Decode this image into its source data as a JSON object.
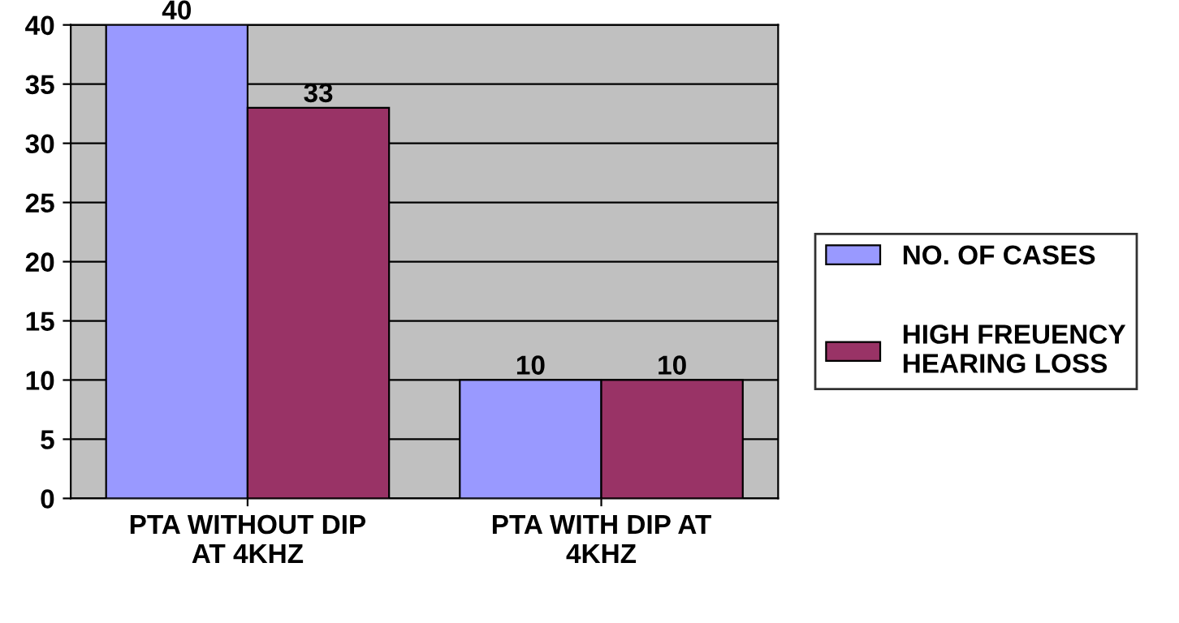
{
  "chart_data": {
    "type": "bar",
    "categories": [
      "PTA WITHOUT DIP\nAT 4KHZ",
      "PTA WITH DIP AT\n4KHZ"
    ],
    "series": [
      {
        "name": "NO. OF CASES",
        "color": "#9999ff",
        "values": [
          40,
          10
        ]
      },
      {
        "name": "HIGH FREUENCY\nHEARING LOSS",
        "color": "#993366",
        "values": [
          33,
          10
        ]
      }
    ],
    "ylim": [
      0,
      40
    ],
    "yticks": [
      0,
      5,
      10,
      15,
      20,
      25,
      30,
      35,
      40
    ],
    "grid": "y",
    "legend": "right",
    "data_labels": true
  }
}
